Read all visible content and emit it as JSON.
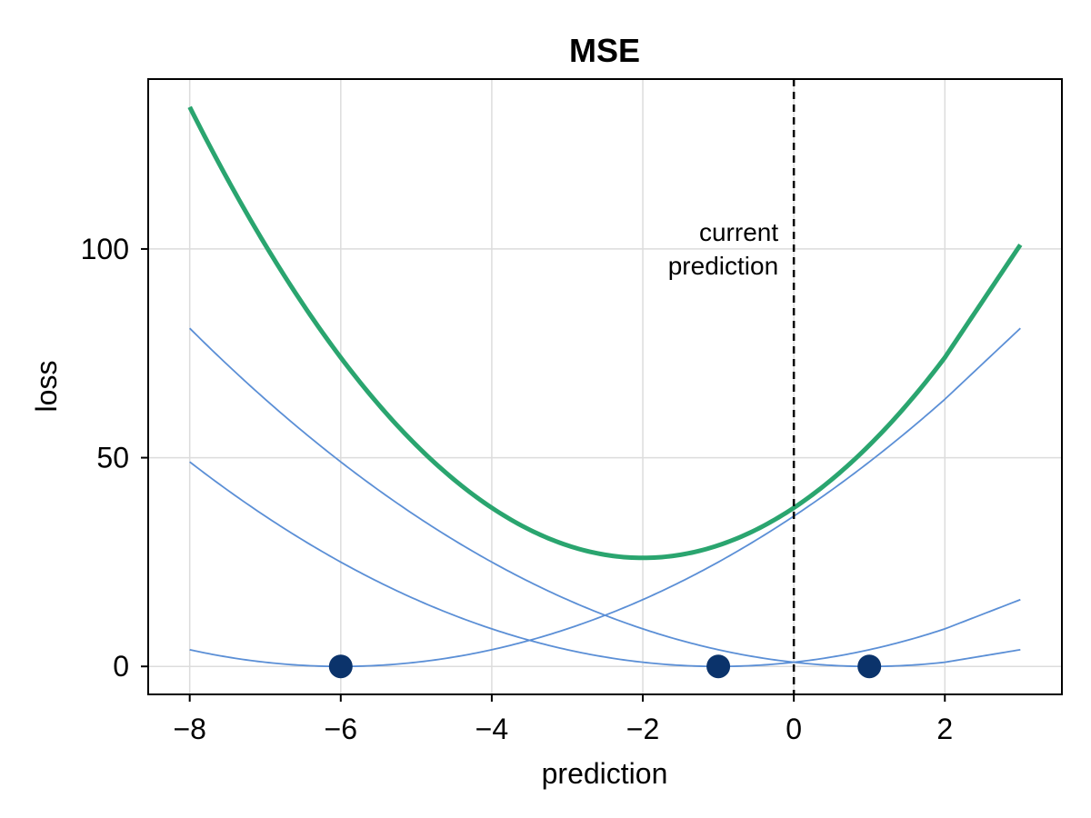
{
  "chart_data": {
    "type": "line",
    "title": "MSE",
    "xlabel": "prediction",
    "ylabel": "loss",
    "xlim": [
      -8.55,
      3.55
    ],
    "ylim": [
      -6.7,
      140.7
    ],
    "x_ticks": [
      -8,
      -6,
      -4,
      -2,
      0,
      2
    ],
    "x_tick_labels": [
      "−8",
      "−6",
      "−4",
      "−2",
      "0",
      "2"
    ],
    "y_ticks": [
      0,
      50,
      100
    ],
    "y_tick_labels": [
      "0",
      "50",
      "100"
    ],
    "grid": true,
    "x_range": [
      -8,
      3
    ],
    "targets": [
      -6,
      -1,
      1
    ],
    "series": [
      {
        "kind": "squared-error",
        "target": -6,
        "color": "#5b8fd6",
        "points": [
          [
            -8,
            4
          ],
          [
            -6,
            0
          ],
          [
            -4,
            4
          ],
          [
            -2,
            16
          ],
          [
            0,
            36
          ],
          [
            2,
            64
          ],
          [
            3,
            81
          ]
        ]
      },
      {
        "kind": "squared-error",
        "target": -1,
        "color": "#5b8fd6",
        "points": [
          [
            -8,
            49
          ],
          [
            -6,
            25
          ],
          [
            -4,
            9
          ],
          [
            -2,
            1
          ],
          [
            -1,
            0
          ],
          [
            0,
            1
          ],
          [
            2,
            9
          ],
          [
            3,
            16
          ]
        ]
      },
      {
        "kind": "squared-error",
        "target": 1,
        "color": "#5b8fd6",
        "points": [
          [
            -8,
            81
          ],
          [
            -6,
            49
          ],
          [
            -4,
            25
          ],
          [
            -2,
            9
          ],
          [
            0,
            1
          ],
          [
            1,
            0
          ],
          [
            2,
            1
          ],
          [
            3,
            4
          ]
        ]
      },
      {
        "kind": "total",
        "color": "#2aa56f",
        "points": [
          [
            -8,
            134
          ],
          [
            -6,
            74
          ],
          [
            -4,
            38
          ],
          [
            -2,
            26
          ],
          [
            0,
            38
          ],
          [
            2,
            74
          ],
          [
            3,
            101
          ]
        ]
      }
    ],
    "scatter": {
      "color": "#0b336b",
      "points": [
        [
          -6,
          0
        ],
        [
          -1,
          0
        ],
        [
          1,
          0
        ]
      ]
    },
    "vline": {
      "x": 0,
      "style": "dashed",
      "color": "#000000",
      "label_line1": "current",
      "label_line2": "prediction"
    }
  }
}
